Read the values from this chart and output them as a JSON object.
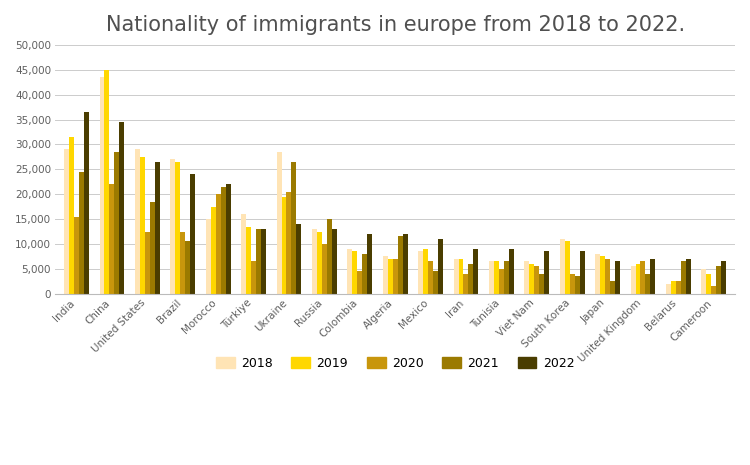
{
  "title": "Nationality of immigrants in europe from 2018 to 2022.",
  "categories": [
    "India",
    "China",
    "United States",
    "Brazil",
    "Morocco",
    "Türkiye",
    "Ukraine",
    "Russia",
    "Colombia",
    "Algeria",
    "Mexico",
    "Iran",
    "Tunisia",
    "Viet Nam",
    "South Korea",
    "Japan",
    "United Kingdom",
    "Belarus",
    "Cameroon"
  ],
  "years": [
    "2018",
    "2019",
    "2020",
    "2021",
    "2022"
  ],
  "colors": {
    "2018": "#FFE4B5",
    "2019": "#FFD700",
    "2020": "#C8960C",
    "2021": "#9B7A00",
    "2022": "#4A3D00"
  },
  "data": {
    "India": [
      29000,
      31500,
      15500,
      24500,
      36500
    ],
    "China": [
      43500,
      45000,
      22000,
      28500,
      34500
    ],
    "United States": [
      29000,
      27500,
      12500,
      18500,
      26500
    ],
    "Brazil": [
      27000,
      26500,
      12500,
      10500,
      24000
    ],
    "Morocco": [
      15000,
      17500,
      20000,
      21500,
      22000
    ],
    "Türkiye": [
      16000,
      13500,
      6500,
      13000,
      13000
    ],
    "Ukraine": [
      28500,
      19500,
      20500,
      26500,
      14000
    ],
    "Russia": [
      13000,
      12500,
      10000,
      15000,
      13000
    ],
    "Colombia": [
      9000,
      8500,
      4500,
      8000,
      12000
    ],
    "Algeria": [
      7500,
      7000,
      7000,
      11500,
      12000
    ],
    "Mexico": [
      8500,
      9000,
      6500,
      4500,
      11000
    ],
    "Iran": [
      7000,
      7000,
      4000,
      6000,
      9000
    ],
    "Tunisia": [
      6500,
      6500,
      5000,
      6500,
      9000
    ],
    "Viet Nam": [
      6500,
      6000,
      5500,
      4000,
      8500
    ],
    "South Korea": [
      11000,
      10500,
      4000,
      3500,
      8500
    ],
    "Japan": [
      8000,
      7500,
      7000,
      2500,
      6500
    ],
    "United Kingdom": [
      5500,
      6000,
      6500,
      4000,
      7000
    ],
    "Belarus": [
      2000,
      2500,
      2500,
      6500,
      7000
    ],
    "Cameroon": [
      5000,
      4000,
      1500,
      5500,
      6500
    ]
  },
  "ylim": [
    0,
    50000
  ],
  "yticks": [
    0,
    5000,
    10000,
    15000,
    20000,
    25000,
    30000,
    35000,
    40000,
    45000,
    50000
  ],
  "background_color": "#ffffff",
  "grid_color": "#cccccc",
  "title_color": "#505050",
  "title_fontsize": 15,
  "tick_fontsize": 7.5,
  "tick_color": "#606060"
}
